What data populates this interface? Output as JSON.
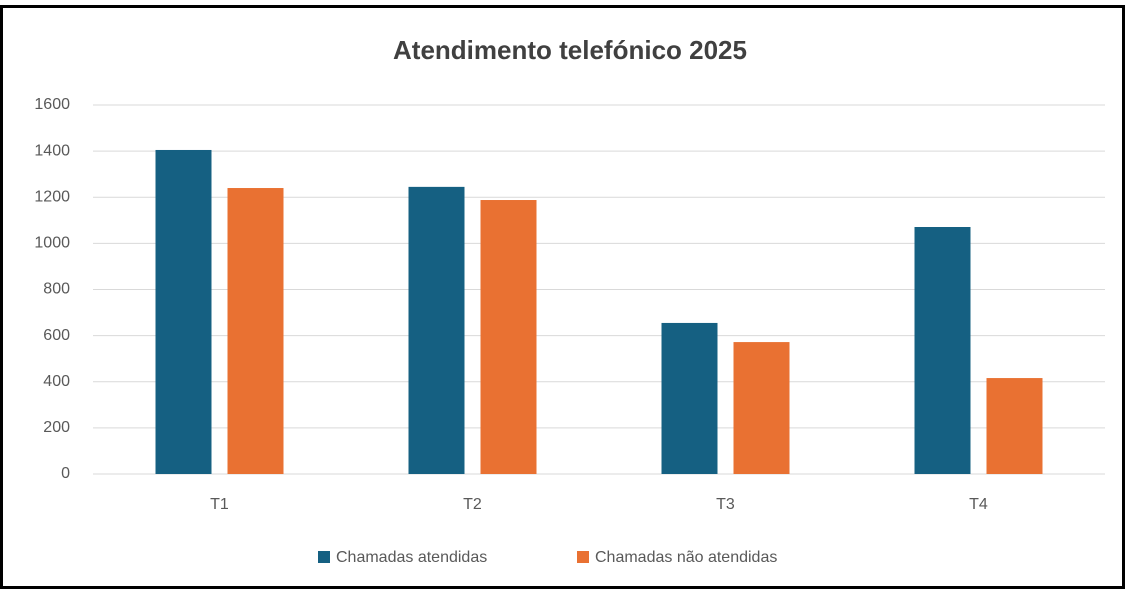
{
  "chart_data": {
    "type": "bar",
    "title": "Atendimento telefónico 2025",
    "categories": [
      "T1",
      "T2",
      "T3",
      "T4"
    ],
    "series": [
      {
        "name": "Chamadas atendidas",
        "color": "#156082",
        "values": [
          1405,
          1245,
          655,
          1071
        ]
      },
      {
        "name": "Chamadas não atendidas",
        "color": "#e97132",
        "values": [
          1240,
          1188,
          572,
          416
        ]
      }
    ],
    "ylim": [
      0,
      1600
    ],
    "yticks": [
      0,
      200,
      400,
      600,
      800,
      1000,
      1200,
      1400,
      1600
    ],
    "grid": true,
    "legend": "bottom"
  }
}
